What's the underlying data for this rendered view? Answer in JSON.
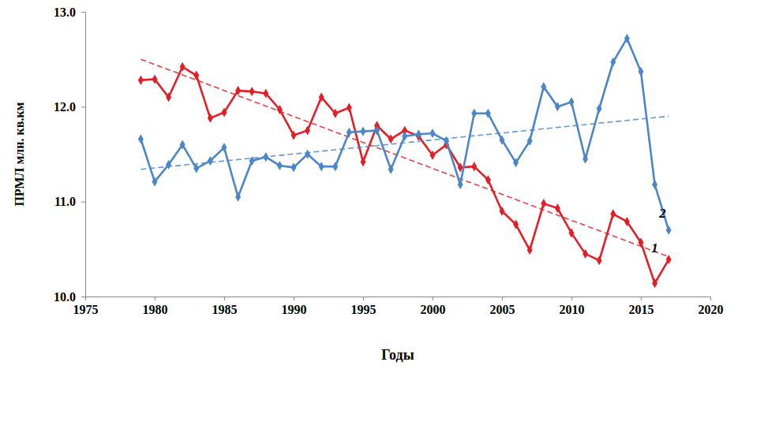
{
  "chart_data": {
    "type": "line",
    "x_label": "Годы",
    "y_label": "ПРМЛ млн. кв.км",
    "x": [
      1979,
      1980,
      1981,
      1982,
      1983,
      1984,
      1985,
      1986,
      1987,
      1988,
      1989,
      1990,
      1991,
      1992,
      1993,
      1994,
      1995,
      1996,
      1997,
      1998,
      1999,
      2000,
      2001,
      2002,
      2003,
      2004,
      2005,
      2006,
      2007,
      2008,
      2009,
      2010,
      2011,
      2012,
      2013,
      2014,
      2015,
      2016,
      2017
    ],
    "series": [
      {
        "name": "1",
        "color": "#e41e26",
        "marker": "diamond",
        "line_style": "solid",
        "values": [
          12.28,
          12.29,
          12.1,
          12.42,
          12.33,
          11.88,
          11.94,
          12.17,
          12.16,
          12.14,
          11.97,
          11.7,
          11.75,
          12.1,
          11.93,
          11.99,
          11.42,
          11.8,
          11.66,
          11.75,
          11.69,
          11.49,
          11.6,
          11.36,
          11.37,
          11.23,
          10.9,
          10.76,
          10.49,
          10.98,
          10.93,
          10.67,
          10.45,
          10.38,
          10.87,
          10.79,
          10.57,
          10.14,
          10.39
        ],
        "trend": {
          "x": [
            1979,
            2017
          ],
          "values": [
            12.5,
            10.42
          ]
        }
      },
      {
        "name": "2",
        "color": "#4a86c8",
        "marker": "diamond",
        "line_style": "solid",
        "values": [
          11.66,
          11.21,
          11.39,
          11.6,
          11.35,
          11.43,
          11.57,
          11.05,
          11.43,
          11.47,
          11.38,
          11.36,
          11.5,
          11.37,
          11.37,
          11.73,
          11.74,
          11.75,
          11.34,
          11.69,
          11.71,
          11.72,
          11.64,
          11.18,
          11.93,
          11.93,
          11.65,
          11.41,
          11.64,
          12.21,
          12.0,
          12.05,
          11.45,
          11.98,
          12.47,
          12.72,
          12.37,
          11.18,
          10.7
        ],
        "trend": {
          "x": [
            1979,
            2017
          ],
          "values": [
            11.34,
            11.9
          ]
        }
      }
    ],
    "xlim": [
      1975,
      2020
    ],
    "xticks": [
      1975,
      1980,
      1985,
      1990,
      1995,
      2000,
      2005,
      2010,
      2015,
      2020
    ],
    "ylim": [
      10,
      13
    ],
    "yticks": [
      {
        "value": 10,
        "label": "10.0"
      },
      {
        "value": 11,
        "label": "11.0"
      },
      {
        "value": 12,
        "label": "12.0"
      },
      {
        "value": 13,
        "label": "13.0"
      }
    ],
    "grid": false
  }
}
